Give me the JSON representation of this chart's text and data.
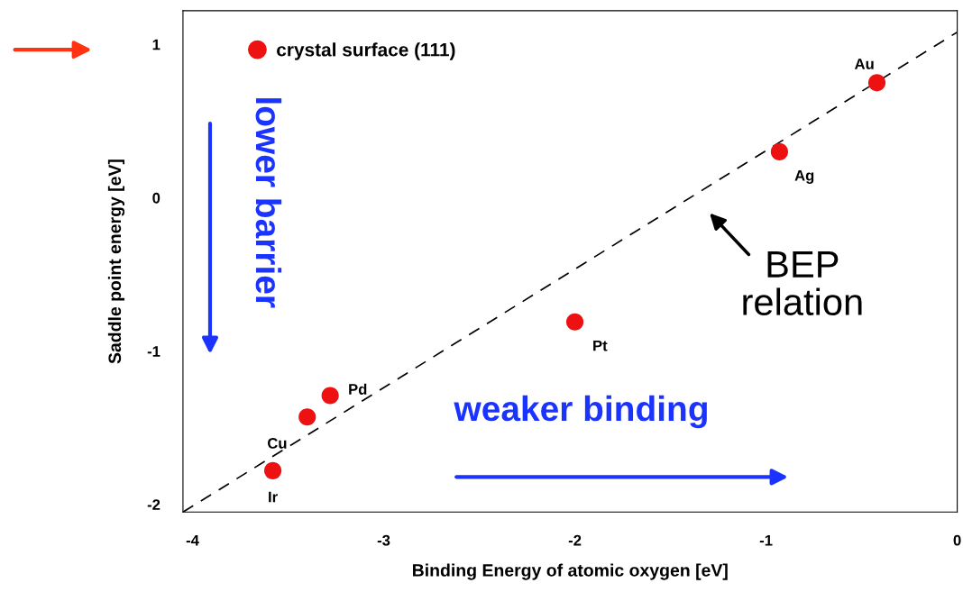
{
  "chart_data": {
    "type": "scatter",
    "xlabel": "Binding Energy of atomic oxygen [eV]",
    "ylabel": "Saddle point energy [eV]",
    "xlim": [
      -4.05,
      0
    ],
    "ylim": [
      -2.05,
      1.22
    ],
    "xticks": [
      -4,
      -3,
      -2,
      -1,
      0
    ],
    "yticks": [
      -2,
      -1,
      0,
      1
    ],
    "grid": false,
    "legend": "top left",
    "series": [
      {
        "name": "crystal surface (111)",
        "color": "#ee1111",
        "marker": "circle",
        "x": [
          -0.42,
          -0.93,
          -2.0,
          -3.28,
          -3.4,
          -3.58
        ],
        "values": [
          0.75,
          0.3,
          -0.81,
          -1.29,
          -1.43,
          -1.78
        ]
      },
      {
        "type": "line",
        "color": "#000000",
        "line_style": "dashed",
        "x": [
          -4.05,
          0
        ],
        "values": [
          -2.05,
          1.08
        ]
      }
    ],
    "annotations": [
      {
        "text": "Au",
        "x": -0.42,
        "y": 0.75
      },
      {
        "text": "Ag",
        "x": -0.93,
        "y": 0.3
      },
      {
        "text": "Pt",
        "x": -2.0,
        "y": -0.81
      },
      {
        "text": "Pd",
        "x": -3.28,
        "y": -1.29
      },
      {
        "text": "Cu",
        "x": -3.4,
        "y": -1.43
      },
      {
        "text": "Ir",
        "x": -3.58,
        "y": -1.78
      },
      "BEP\nrelation",
      "lower barrier",
      "weaker binding"
    ]
  }
}
